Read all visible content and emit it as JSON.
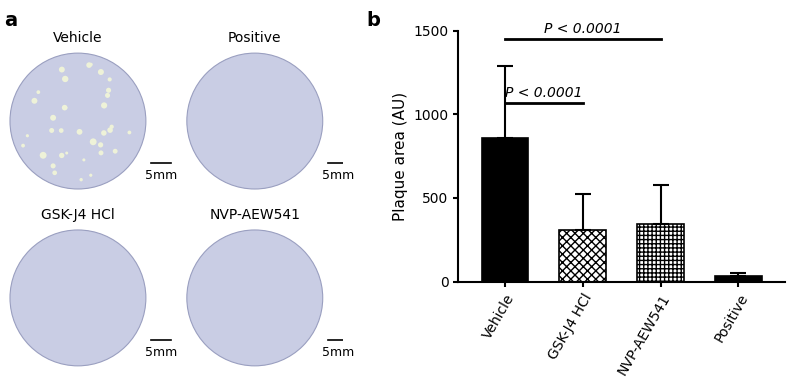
{
  "chart_data": {
    "type": "bar",
    "categories": [
      "Vehicle",
      "GSK-J4 HCl",
      "NVP-AEW541",
      "Positive"
    ],
    "values": [
      860,
      305,
      345,
      35
    ],
    "errors": [
      430,
      220,
      230,
      15
    ],
    "colors": [
      "#000000",
      "#ffffff",
      "#ffffff",
      "#000000"
    ],
    "y_label": "Plaque area (AU)",
    "ylim": [
      0,
      1500
    ],
    "yticks": [
      0,
      500,
      1000,
      1500
    ],
    "annotations": [
      {
        "text": "P < 0.0001",
        "from": "Vehicle",
        "to": "GSK-J4 HCl"
      },
      {
        "text": "P < 0.0001",
        "from": "Vehicle",
        "to": "NVP-AEW541"
      }
    ],
    "panel_label": "b"
  },
  "images": {
    "panel_label": "a",
    "color": "#c9cde4",
    "wells": [
      {
        "label": "Vehicle",
        "scale_bar": "5mm"
      },
      {
        "label": "Positive",
        "scale_bar": "5mm"
      },
      {
        "label": "GSK-J4 HCl",
        "scale_bar": "5mm"
      },
      {
        "label": "NVP-AEW541",
        "scale_bar": "5mm"
      }
    ]
  }
}
